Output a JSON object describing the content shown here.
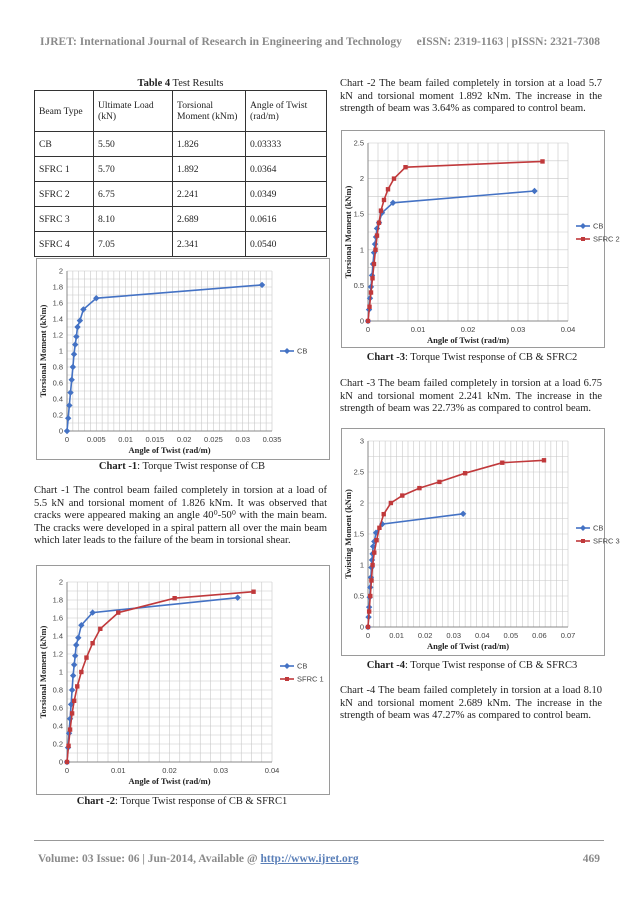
{
  "header": {
    "journal": "IJRET: International Journal of Research in Engineering and Technology",
    "issn": "eISSN: 2319-1163 | pISSN: 2321-7308"
  },
  "footer": {
    "volume_text": "Volume: 03 Issue: 06 | Jun-2014, Available @ ",
    "link": "http://www.ijret.org",
    "page": "469"
  },
  "table": {
    "caption_bold": "Table 4",
    "caption_rest": " Test Results",
    "headers": [
      "Beam Type",
      "Ultimate Load (kN)",
      "Torsional Moment (kNm)",
      "Angle of Twist (rad/m)"
    ],
    "rows": [
      [
        "CB",
        "5.50",
        "1.826",
        "0.03333"
      ],
      [
        "SFRC 1",
        "5.70",
        "1.892",
        "0.0364"
      ],
      [
        "SFRC 2",
        "6.75",
        "2.241",
        "0.0349"
      ],
      [
        "SFRC 3",
        "8.10",
        "2.689",
        "0.0616"
      ],
      [
        "SFRC 4",
        "7.05",
        "2.341",
        "0.0540"
      ]
    ]
  },
  "captions": {
    "c1_bold": "Chart -1",
    "c1_rest": ": Torque Twist response of CB",
    "c2_bold": "Chart -2",
    "c2_rest": ": Torque Twist response of CB & SFRC1",
    "c3_bold": "Chart -3",
    "c3_rest": ": Torque Twist response of CB & SFRC2",
    "c4_bold": "Chart -4",
    "c4_rest": ": Torque Twist response of CB & SFRC3"
  },
  "paragraphs": {
    "p_chart1": "Chart -1 The control beam failed completely in torsion at a load of 5.5 kN and torsional moment of 1.826 kNm. It was observed that cracks were appeared making an angle 40⁰-50⁰ with the main beam. The cracks were developed in a spiral pattern all over the main beam which later leads to the failure of the beam in torsional shear.",
    "p_chart2": "Chart -2 The beam failed completely in torsion at a load 5.7 kN and torsional moment 1.892 kNm. The increase in the strength of beam was 3.64% as compared to control beam.",
    "p_chart3": "Chart -3 The beam failed completely in torsion at a load 6.75 kN and torsional moment 2.241 kNm. The increase in the strength of beam was 22.73% as compared to control beam.",
    "p_chart4": "Chart -4 The beam failed completely in torsion at a load 8.10 kN and torsional moment 2.689 kNm. The increase in the strength of beam was 47.27% as compared to control beam."
  },
  "colors": {
    "cb": "#4472c4",
    "sfrc": "#c0393b",
    "grid": "#c8c8c8"
  },
  "chart_data": [
    {
      "id": "chart1",
      "type": "line",
      "xlabel": "Angle of Twist (rad/m)",
      "ylabel": "Torsional Moment (kNm)",
      "xlim": [
        0,
        0.035
      ],
      "ylim": [
        0,
        2
      ],
      "xticks": [
        "0",
        "0.005",
        "0.01",
        "0.015",
        "0.02",
        "0.025",
        "0.03",
        "0.035"
      ],
      "yticks": [
        "0",
        "0.2",
        "0.4",
        "0.6",
        "0.8",
        "1",
        "1.2",
        "1.4",
        "1.6",
        "1.8",
        "2"
      ],
      "grid": true,
      "legend": "right",
      "series": [
        {
          "name": "CB",
          "color": "#4472c4",
          "marker": "diamond",
          "x": [
            0,
            0.0002,
            0.0004,
            0.0006,
            0.0008,
            0.001,
            0.0012,
            0.0014,
            0.0016,
            0.0018,
            0.0022,
            0.0028,
            0.005,
            0.0333
          ],
          "y": [
            0,
            0.16,
            0.32,
            0.48,
            0.64,
            0.8,
            0.96,
            1.08,
            1.18,
            1.3,
            1.38,
            1.52,
            1.66,
            1.826
          ]
        }
      ]
    },
    {
      "id": "chart2",
      "type": "line",
      "xlabel": "Angle of Twist (rad/m)",
      "ylabel": "Torsional Moment (kNm)",
      "xlim": [
        0,
        0.04
      ],
      "ylim": [
        0,
        2
      ],
      "xticks": [
        "0",
        "0.01",
        "0.02",
        "0.03",
        "0.04"
      ],
      "yticks": [
        "0",
        "0.2",
        "0.4",
        "0.6",
        "0.8",
        "1",
        "1.2",
        "1.4",
        "1.6",
        "1.8",
        "2"
      ],
      "grid": true,
      "legend": "right",
      "series": [
        {
          "name": "CB",
          "color": "#4472c4",
          "marker": "diamond",
          "x": [
            0,
            0.0002,
            0.0004,
            0.0006,
            0.0008,
            0.001,
            0.0012,
            0.0014,
            0.0016,
            0.0018,
            0.0022,
            0.0028,
            0.005,
            0.0333
          ],
          "y": [
            0,
            0.16,
            0.32,
            0.48,
            0.64,
            0.8,
            0.96,
            1.08,
            1.18,
            1.3,
            1.38,
            1.52,
            1.66,
            1.826
          ]
        },
        {
          "name": "SFRC 1",
          "color": "#c0393b",
          "marker": "square",
          "x": [
            0,
            0.0003,
            0.0006,
            0.001,
            0.0014,
            0.002,
            0.0028,
            0.0038,
            0.005,
            0.0065,
            0.01,
            0.021,
            0.0364
          ],
          "y": [
            0,
            0.18,
            0.36,
            0.54,
            0.68,
            0.84,
            1.0,
            1.16,
            1.32,
            1.48,
            1.66,
            1.82,
            1.892
          ]
        }
      ]
    },
    {
      "id": "chart3",
      "type": "line",
      "xlabel": "Angle of Twist (rad/m)",
      "ylabel": "Torsional Moment (kNm)",
      "xlim": [
        0,
        0.04
      ],
      "ylim": [
        0,
        2.5
      ],
      "xticks": [
        "0",
        "0.01",
        "0.02",
        "0.03",
        "0.04"
      ],
      "yticks": [
        "0",
        "0.5",
        "1",
        "1.5",
        "2",
        "2.5"
      ],
      "grid": true,
      "legend": "right",
      "series": [
        {
          "name": "CB",
          "color": "#4472c4",
          "marker": "diamond",
          "x": [
            0,
            0.0002,
            0.0004,
            0.0006,
            0.0008,
            0.001,
            0.0012,
            0.0014,
            0.0016,
            0.0018,
            0.0022,
            0.0028,
            0.005,
            0.0333
          ],
          "y": [
            0,
            0.16,
            0.32,
            0.48,
            0.64,
            0.8,
            0.96,
            1.08,
            1.18,
            1.3,
            1.38,
            1.52,
            1.66,
            1.826
          ]
        },
        {
          "name": "SFRC 2",
          "color": "#c0393b",
          "marker": "square",
          "x": [
            0,
            0.0003,
            0.0006,
            0.0009,
            0.0012,
            0.0015,
            0.0018,
            0.0022,
            0.0026,
            0.0032,
            0.004,
            0.0052,
            0.0075,
            0.0349
          ],
          "y": [
            0,
            0.2,
            0.4,
            0.6,
            0.8,
            1.0,
            1.2,
            1.38,
            1.55,
            1.7,
            1.85,
            2.0,
            2.16,
            2.241
          ]
        }
      ]
    },
    {
      "id": "chart4",
      "type": "line",
      "xlabel": "Angle of Twist (rad/m)",
      "ylabel": "Twisting Moment (kNm)",
      "xlim": [
        0,
        0.07
      ],
      "ylim": [
        0,
        3
      ],
      "xticks": [
        "0",
        "0.01",
        "0.02",
        "0.03",
        "0.04",
        "0.05",
        "0.06",
        "0.07"
      ],
      "yticks": [
        "0",
        "0.5",
        "1",
        "1.5",
        "2",
        "2.5",
        "3"
      ],
      "grid": true,
      "legend": "right",
      "series": [
        {
          "name": "CB",
          "color": "#4472c4",
          "marker": "diamond",
          "x": [
            0,
            0.0002,
            0.0004,
            0.0006,
            0.0008,
            0.001,
            0.0012,
            0.0014,
            0.0016,
            0.0018,
            0.0022,
            0.0028,
            0.005,
            0.0333
          ],
          "y": [
            0,
            0.16,
            0.32,
            0.48,
            0.64,
            0.8,
            0.96,
            1.08,
            1.18,
            1.3,
            1.38,
            1.52,
            1.66,
            1.826
          ]
        },
        {
          "name": "SFRC 3",
          "color": "#c0393b",
          "marker": "square",
          "x": [
            0,
            0.0004,
            0.0008,
            0.0012,
            0.0016,
            0.0022,
            0.003,
            0.004,
            0.0055,
            0.008,
            0.012,
            0.018,
            0.025,
            0.034,
            0.047,
            0.0616
          ],
          "y": [
            0,
            0.25,
            0.5,
            0.75,
            1.0,
            1.2,
            1.4,
            1.6,
            1.82,
            2.0,
            2.12,
            2.24,
            2.34,
            2.48,
            2.65,
            2.689
          ]
        }
      ]
    }
  ]
}
